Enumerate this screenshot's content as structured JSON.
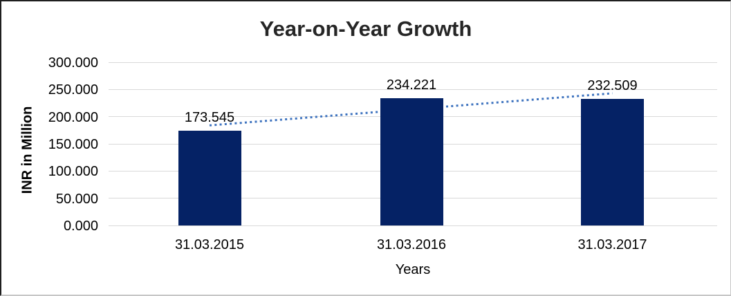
{
  "chart_data": {
    "type": "bar",
    "title": "Year-on-Year Growth",
    "categories": [
      "31.03.2015",
      "31.03.2016",
      "31.03.2017"
    ],
    "values": [
      173.545,
      234.221,
      232.509
    ],
    "data_labels": [
      "173.545",
      "234.221",
      "232.509"
    ],
    "xlabel": "Years",
    "ylabel": "INR in Million",
    "ylim": [
      0,
      300
    ],
    "ytick_step": 50,
    "ytick_labels": [
      "300.000",
      "250.000",
      "200.000",
      "150.000",
      "100.000",
      "50.000",
      "0.000"
    ],
    "grid": true,
    "legend": "none",
    "trendline": {
      "type": "linear",
      "style": "dotted"
    },
    "colors": {
      "bar": "#052265",
      "trendline": "#3e73bf",
      "gridline": "#d9d9d9",
      "title": "#262626",
      "text": "#000000",
      "background": "#ffffff"
    }
  }
}
